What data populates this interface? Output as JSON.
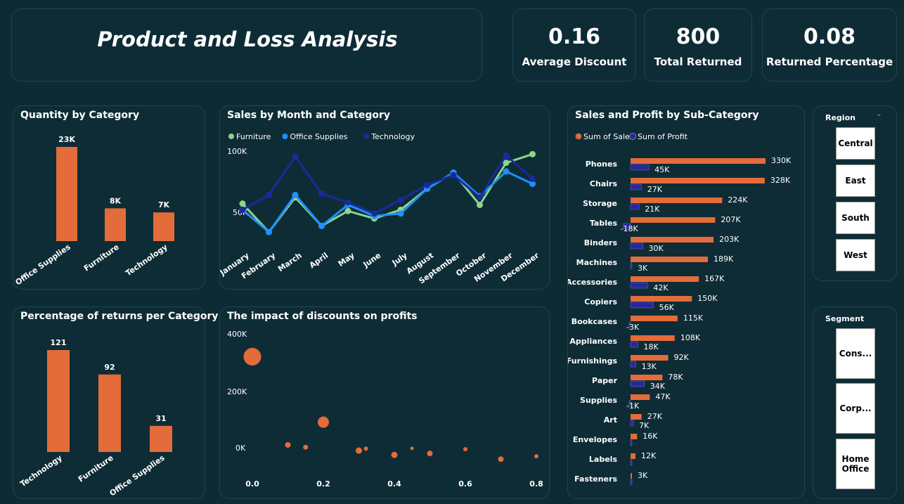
{
  "header": {
    "title": "Product and Loss Analysis"
  },
  "kpis": [
    {
      "value": "0.16",
      "label": "Average Discount"
    },
    {
      "value": "800",
      "label": "Total Returned"
    },
    {
      "value": "0.08",
      "label": "Returned Percentage"
    }
  ],
  "colors": {
    "bar": "#e36c3a",
    "furniture": "#8ed48b",
    "office_supplies": "#1e90ff",
    "technology": "#1a2a9c",
    "profit": "#27289c",
    "background": "#0d2b33"
  },
  "chart_data": [
    {
      "id": "qty",
      "type": "bar",
      "title": "Quantity by Category",
      "categories": [
        "Office Supplies",
        "Furniture",
        "Technology"
      ],
      "values": [
        23000,
        8000,
        7000
      ],
      "labels": [
        "23K",
        "8K",
        "7K"
      ]
    },
    {
      "id": "sales_month",
      "type": "line",
      "title": "Sales by Month and Category",
      "x": [
        "January",
        "February",
        "March",
        "April",
        "May",
        "June",
        "July",
        "August",
        "September",
        "October",
        "November",
        "December"
      ],
      "y_ticks": [
        "100K",
        "50K"
      ],
      "series": [
        {
          "name": "Furniture",
          "values": [
            57000,
            34000,
            62000,
            39000,
            51000,
            45000,
            52000,
            69000,
            82000,
            56000,
            90000,
            97000
          ]
        },
        {
          "name": "Office Supplies",
          "values": [
            52000,
            34000,
            64000,
            39000,
            56000,
            47000,
            49000,
            69000,
            82000,
            63000,
            83000,
            73000
          ]
        },
        {
          "name": "Technology",
          "values": [
            52000,
            64000,
            95000,
            65000,
            58000,
            49000,
            60000,
            72000,
            80000,
            62000,
            96000,
            77000
          ]
        }
      ]
    },
    {
      "id": "subcat",
      "type": "bar",
      "title": "Sales and Profit by Sub-Category",
      "legend": [
        "Sum of Sales",
        "Sum of Profit"
      ],
      "categories": [
        "Phones",
        "Chairs",
        "Storage",
        "Tables",
        "Binders",
        "Machines",
        "Accessories",
        "Copiers",
        "Bookcases",
        "Appliances",
        "Furnishings",
        "Paper",
        "Supplies",
        "Art",
        "Envelopes",
        "Labels",
        "Fasteners"
      ],
      "series": [
        {
          "name": "Sum of Sales",
          "values": [
            330000,
            328000,
            224000,
            207000,
            203000,
            189000,
            167000,
            150000,
            115000,
            108000,
            92000,
            78000,
            47000,
            27000,
            16000,
            12000,
            3000
          ],
          "labels": [
            "330K",
            "328K",
            "224K",
            "207K",
            "203K",
            "189K",
            "167K",
            "150K",
            "115K",
            "108K",
            "92K",
            "78K",
            "47K",
            "27K",
            "16K",
            "12K",
            "3K"
          ]
        },
        {
          "name": "Sum of Profit",
          "values": [
            45000,
            27000,
            21000,
            -18000,
            30000,
            3000,
            42000,
            56000,
            -3000,
            18000,
            13000,
            34000,
            -1000,
            7000,
            0,
            0,
            0
          ],
          "labels": [
            "45K",
            "27K",
            "21K",
            "-18K",
            "30K",
            "3K",
            "42K",
            "56K",
            "-3K",
            "18K",
            "13K",
            "34K",
            "-1K",
            "7K",
            "",
            "",
            ""
          ]
        }
      ]
    },
    {
      "id": "returns",
      "type": "bar",
      "title": "Percentage of returns per Category",
      "categories": [
        "Technology",
        "Furniture",
        "Office Supplies"
      ],
      "values": [
        121,
        92,
        31
      ],
      "labels": [
        "121",
        "92",
        "31"
      ]
    },
    {
      "id": "discount",
      "type": "scatter",
      "title": "The impact of discounts on profits",
      "x_ticks": [
        "0.0",
        "0.2",
        "0.4",
        "0.6",
        "0.8"
      ],
      "y_ticks": [
        "400K",
        "200K",
        "0K"
      ],
      "points": [
        {
          "x": 0.0,
          "y": 320000,
          "size": 22
        },
        {
          "x": 0.1,
          "y": 10000,
          "size": 5
        },
        {
          "x": 0.15,
          "y": 2000,
          "size": 4
        },
        {
          "x": 0.2,
          "y": 90000,
          "size": 13
        },
        {
          "x": 0.3,
          "y": -10000,
          "size": 6
        },
        {
          "x": 0.32,
          "y": -3000,
          "size": 3
        },
        {
          "x": 0.4,
          "y": -25000,
          "size": 6
        },
        {
          "x": 0.45,
          "y": -2000,
          "size": 2
        },
        {
          "x": 0.5,
          "y": -20000,
          "size": 5
        },
        {
          "x": 0.6,
          "y": -5000,
          "size": 3
        },
        {
          "x": 0.7,
          "y": -40000,
          "size": 5
        },
        {
          "x": 0.8,
          "y": -30000,
          "size": 3
        }
      ]
    }
  ],
  "slicers": {
    "region": {
      "title": "Region",
      "options": [
        "Central",
        "East",
        "South",
        "West"
      ]
    },
    "segment": {
      "title": "Segment",
      "options": [
        "Cons...",
        "Corp...",
        "Home Office"
      ]
    }
  }
}
